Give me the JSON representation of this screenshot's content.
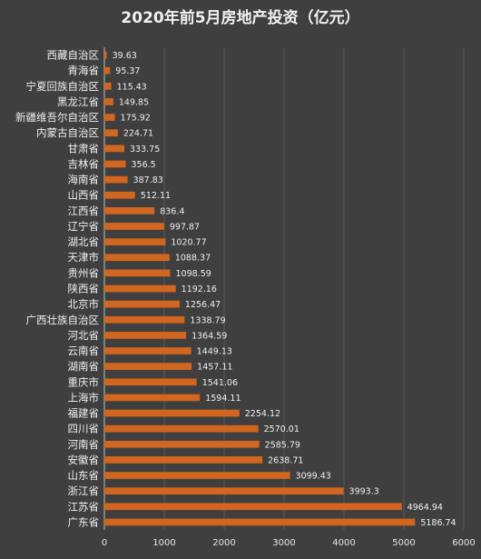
{
  "chart_data": {
    "type": "bar",
    "orientation": "horizontal",
    "title": "2020年前5月房地产投资（亿元）",
    "xlabel": "",
    "ylabel": "",
    "xlim": [
      0,
      6000
    ],
    "x_ticks": [
      0,
      1000,
      2000,
      3000,
      4000,
      5000,
      6000
    ],
    "grid": true,
    "bar_color": "#d0661f",
    "categories": [
      "西藏自治区",
      "青海省",
      "宁夏回族自治区",
      "黑龙江省",
      "新疆维吾尔自治区",
      "内蒙古自治区",
      "甘肃省",
      "吉林省",
      "海南省",
      "山西省",
      "江西省",
      "辽宁省",
      "湖北省",
      "天津市",
      "贵州省",
      "陕西省",
      "北京市",
      "广西壮族自治区",
      "河北省",
      "云南省",
      "湖南省",
      "重庆市",
      "上海市",
      "福建省",
      "四川省",
      "河南省",
      "安徽省",
      "山东省",
      "浙江省",
      "江苏省",
      "广东省"
    ],
    "values": [
      39.63,
      95.37,
      115.43,
      149.85,
      175.92,
      224.71,
      333.75,
      356.5,
      387.83,
      512.11,
      836.4,
      997.87,
      1020.77,
      1088.37,
      1098.59,
      1192.16,
      1256.47,
      1338.79,
      1364.59,
      1449.13,
      1457.11,
      1541.06,
      1594.11,
      2254.12,
      2570.01,
      2585.79,
      2638.71,
      3099.43,
      3993.3,
      4964.94,
      5186.74
    ],
    "value_labels": [
      "39.63",
      "95.37",
      "115.43",
      "149.85",
      "175.92",
      "224.71",
      "333.75",
      "356.5",
      "387.83",
      "512.11",
      "836.4",
      "997.87",
      "1020.77",
      "1088.37",
      "1098.59",
      "1192.16",
      "1256.47",
      "1338.79",
      "1364.59",
      "1449.13",
      "1457.11",
      "1541.06",
      "1594.11",
      "2254.12",
      "2570.01",
      "2585.79",
      "2638.71",
      "3099.43",
      "3993.3",
      "4964.94",
      "5186.74"
    ]
  }
}
